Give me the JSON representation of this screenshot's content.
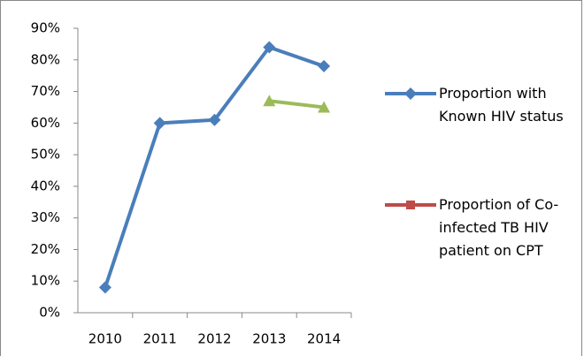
{
  "chart_data": {
    "type": "line",
    "categories": [
      "2010",
      "2011",
      "2012",
      "2013",
      "2014"
    ],
    "series": [
      {
        "name": "Proportion with Known HIV status",
        "color": "#4a7ebb",
        "marker": "diamond",
        "values": [
          8,
          60,
          61,
          84,
          78
        ]
      },
      {
        "name": "Proportion of Co-infected TB HIV patient on CPT",
        "color": "#9bbb59",
        "marker": "triangle",
        "legend_color": "#be4b48",
        "legend_marker": "square",
        "values": [
          null,
          null,
          null,
          67,
          65
        ]
      }
    ],
    "ylim": [
      0,
      90
    ],
    "yticks": [
      {
        "value": 0,
        "label": "0%"
      },
      {
        "value": 10,
        "label": "10%"
      },
      {
        "value": 20,
        "label": "20%"
      },
      {
        "value": 30,
        "label": "30%"
      },
      {
        "value": 40,
        "label": "40%"
      },
      {
        "value": 50,
        "label": "50%"
      },
      {
        "value": 60,
        "label": "60%"
      },
      {
        "value": 70,
        "label": "70%"
      },
      {
        "value": 80,
        "label": "80%"
      },
      {
        "value": 90,
        "label": "90%"
      }
    ],
    "legend": "right"
  }
}
